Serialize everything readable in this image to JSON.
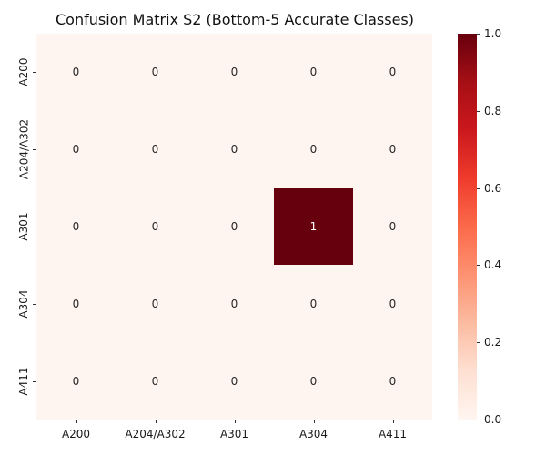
{
  "chart_data": {
    "type": "heatmap",
    "title": "Confusion Matrix S2 (Bottom-5 Accurate Classes)",
    "xlabel": "",
    "ylabel": "",
    "x_categories": [
      "A200",
      "A204/A302",
      "A301",
      "A304",
      "A411"
    ],
    "y_categories": [
      "A200",
      "A204/A302",
      "A301",
      "A304",
      "A411"
    ],
    "values": [
      [
        0,
        0,
        0,
        0,
        0
      ],
      [
        0,
        0,
        0,
        0,
        0
      ],
      [
        0,
        0,
        0,
        1,
        0
      ],
      [
        0,
        0,
        0,
        0,
        0
      ],
      [
        0,
        0,
        0,
        0,
        0
      ]
    ],
    "annotations": true,
    "colormap": "Reds",
    "vmin": 0.0,
    "vmax": 1.0,
    "colorbar_ticks": [
      "0.0",
      "0.2",
      "0.4",
      "0.6",
      "0.8",
      "1.0"
    ],
    "colors": {
      "low": "#fff5f0",
      "high": "#67000d",
      "text_dark": "#262626",
      "text_light": "#ffffff"
    }
  }
}
